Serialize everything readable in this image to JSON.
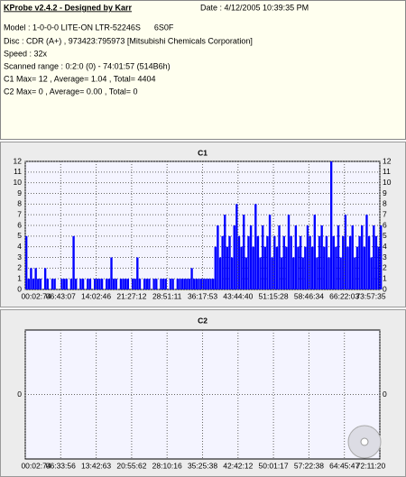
{
  "header": {
    "title": "KProbe v2.4.2 - Designed by Karr",
    "date": "Date : 4/12/2005 10:39:35 PM",
    "model": "Model : 1-0-0-0 LITE-ON LTR-52246S      6S0F",
    "disc": "Disc : CDR (A+) , 973423:795973 [Mitsubishi Chemicals Corporation]",
    "speed": "Speed : 32x",
    "range": "Scanned range : 0:2:0 (0) - 74:01:57 (514B6h)",
    "c1": "C1 Max= 12 , Average= 1.04 , Total= 4404",
    "c2": "C2 Max= 0 , Average= 0.00 , Total= 0"
  },
  "chart_data": [
    {
      "type": "bar",
      "title": "C1",
      "color": "#0000ff",
      "grid": true,
      "ylim": [
        0,
        12
      ],
      "yticks": [
        0,
        1,
        2,
        3,
        4,
        5,
        6,
        7,
        8,
        9,
        10,
        11,
        12
      ],
      "categories": [
        "00:02:74",
        null,
        null,
        null,
        null,
        null,
        null,
        null,
        null,
        null,
        null,
        null,
        null,
        null,
        null,
        "06:43:07",
        null,
        null,
        null,
        null,
        null,
        null,
        null,
        null,
        null,
        null,
        null,
        null,
        null,
        null,
        "14:02:46",
        null,
        null,
        null,
        null,
        null,
        null,
        null,
        null,
        null,
        null,
        null,
        null,
        null,
        null,
        "21:27:12",
        null,
        null,
        null,
        null,
        null,
        null,
        null,
        null,
        null,
        null,
        null,
        null,
        null,
        null,
        "28:51:11",
        null,
        null,
        null,
        null,
        null,
        null,
        null,
        null,
        null,
        null,
        null,
        null,
        null,
        null,
        "36:17:53",
        null,
        null,
        null,
        null,
        null,
        null,
        null,
        null,
        null,
        null,
        null,
        null,
        null,
        null,
        "43:44:40",
        null,
        null,
        null,
        null,
        null,
        null,
        null,
        null,
        null,
        null,
        null,
        null,
        null,
        null,
        "51:15:28",
        null,
        null,
        null,
        null,
        null,
        null,
        null,
        null,
        null,
        null,
        null,
        null,
        null,
        null,
        "58:46:34",
        null,
        null,
        null,
        null,
        null,
        null,
        null,
        null,
        null,
        null,
        null,
        null,
        null,
        null,
        "66:22:03",
        null,
        null,
        null,
        null,
        null,
        null,
        null,
        null,
        null,
        null,
        null,
        null,
        null,
        null,
        "73:57:35"
      ],
      "values": [
        5,
        1,
        2,
        1,
        2,
        1,
        1,
        0,
        2,
        1,
        0,
        1,
        1,
        0,
        0,
        1,
        1,
        1,
        0,
        1,
        5,
        1,
        0,
        1,
        1,
        0,
        1,
        1,
        0,
        1,
        1,
        1,
        1,
        0,
        1,
        1,
        3,
        1,
        1,
        0,
        1,
        1,
        1,
        1,
        0,
        1,
        1,
        3,
        1,
        0,
        1,
        1,
        1,
        0,
        1,
        1,
        0,
        1,
        1,
        1,
        0,
        1,
        1,
        0,
        1,
        1,
        1,
        1,
        1,
        1,
        2,
        1,
        1,
        1,
        1,
        1,
        1,
        1,
        1,
        1,
        4,
        6,
        3,
        5,
        7,
        4,
        5,
        3,
        6,
        8,
        5,
        4,
        7,
        3,
        5,
        6,
        4,
        8,
        5,
        3,
        6,
        4,
        5,
        7,
        3,
        5,
        4,
        6,
        3,
        5,
        4,
        7,
        5,
        3,
        6,
        4,
        5,
        3,
        4,
        6,
        5,
        4,
        7,
        3,
        5,
        6,
        4,
        5,
        3,
        12,
        5,
        4,
        6,
        3,
        5,
        7,
        4,
        5,
        6,
        3,
        4,
        5,
        6,
        4,
        7,
        5,
        3,
        6,
        5,
        4,
        6
      ]
    },
    {
      "type": "bar",
      "title": "C2",
      "color": "#0000ff",
      "grid": true,
      "ylim": [
        -1,
        1
      ],
      "yticks": [
        0
      ],
      "categories": [
        "00:02:74",
        "06:33:56",
        "13:42:63",
        "20:55:62",
        "28:10:16",
        "35:25:38",
        "42:42:12",
        "50:01:17",
        "57:22:38",
        "64:45:47",
        "72:11:20"
      ],
      "values": [
        0,
        0,
        0,
        0,
        0,
        0,
        0,
        0,
        0,
        0,
        0
      ]
    }
  ]
}
